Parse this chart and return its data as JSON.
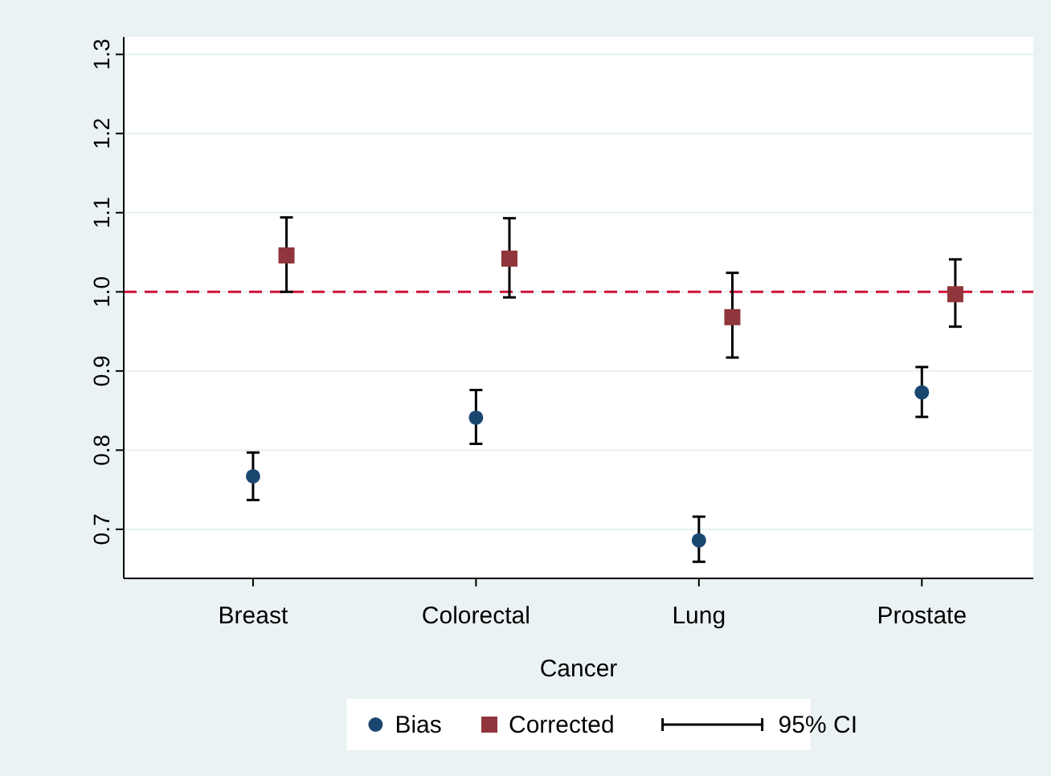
{
  "chart_data": {
    "type": "scatter",
    "xlabel": "Cancer",
    "categories": [
      "Breast",
      "Colorectal",
      "Lung",
      "Prostate"
    ],
    "series": [
      {
        "name": "Bias",
        "color": "#1a476f",
        "marker": "circle",
        "values": [
          0.767,
          0.841,
          0.686,
          0.873
        ],
        "errors": [
          [
            0.737,
            0.797
          ],
          [
            0.808,
            0.876
          ],
          [
            0.659,
            0.716
          ],
          [
            0.842,
            0.905
          ]
        ]
      },
      {
        "name": "Corrected",
        "color": "#90353b",
        "marker": "square",
        "values": [
          1.046,
          1.042,
          0.968,
          0.997
        ],
        "errors": [
          [
            1.0,
            1.094
          ],
          [
            0.993,
            1.093
          ],
          [
            0.917,
            1.024
          ],
          [
            0.956,
            1.041
          ]
        ]
      }
    ],
    "ylim": [
      0.638,
      1.322
    ],
    "yticks": [
      0.7,
      0.8,
      0.9,
      {
        "value": 1,
        "label": "1.0"
      },
      1.1,
      1.2,
      1.3
    ],
    "ref_lines": [
      {
        "axis": "y",
        "value": 1,
        "color": "#d0103a",
        "line_style": "dashed"
      }
    ],
    "annotations": [
      "95% CI"
    ],
    "grid": "y",
    "legend": "bottom"
  }
}
